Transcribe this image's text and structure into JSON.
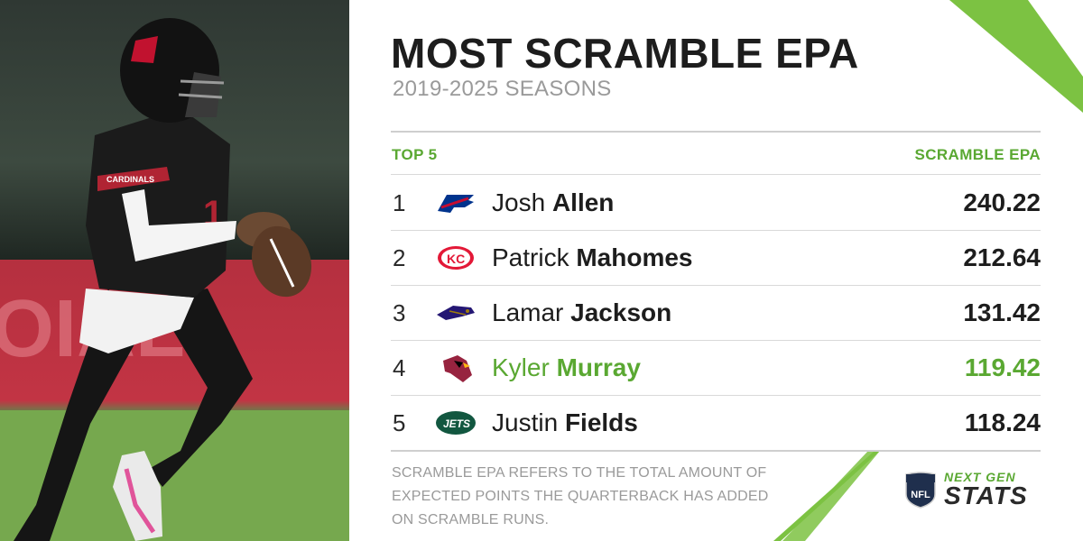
{
  "header": {
    "title": "MOST SCRAMBLE EPA",
    "subtitle": "2019-2025 SEASONS"
  },
  "table": {
    "col_left": "TOP 5",
    "col_right": "SCRAMBLE EPA",
    "rows": [
      {
        "rank": "1",
        "first": "Josh",
        "last": "Allen",
        "value": "240.22",
        "team_logo": "bills-logo",
        "highlight": false
      },
      {
        "rank": "2",
        "first": "Patrick",
        "last": "Mahomes",
        "value": "212.64",
        "team_logo": "chiefs-logo",
        "highlight": false
      },
      {
        "rank": "3",
        "first": "Lamar",
        "last": "Jackson",
        "value": "131.42",
        "team_logo": "ravens-logo",
        "highlight": false
      },
      {
        "rank": "4",
        "first": "Kyler",
        "last": "Murray",
        "value": "119.42",
        "team_logo": "cardinals-logo",
        "highlight": true
      },
      {
        "rank": "5",
        "first": "Justin",
        "last": "Fields",
        "value": "118.24",
        "team_logo": "jets-logo",
        "highlight": false
      }
    ]
  },
  "footnote": "SCRAMBLE EPA REFERS TO THE TOTAL AMOUNT OF EXPECTED POINTS THE QUARTERBACK HAS ADDED ON SCRAMBLE RUNS.",
  "branding": {
    "nfl_shield_text": "NFL",
    "ngs_top": "NEXT GEN",
    "ngs_bottom": "STATS"
  },
  "colors": {
    "accent_green": "#5aa832",
    "text_dark": "#1d1d1d",
    "text_muted": "#9a9a9a"
  }
}
